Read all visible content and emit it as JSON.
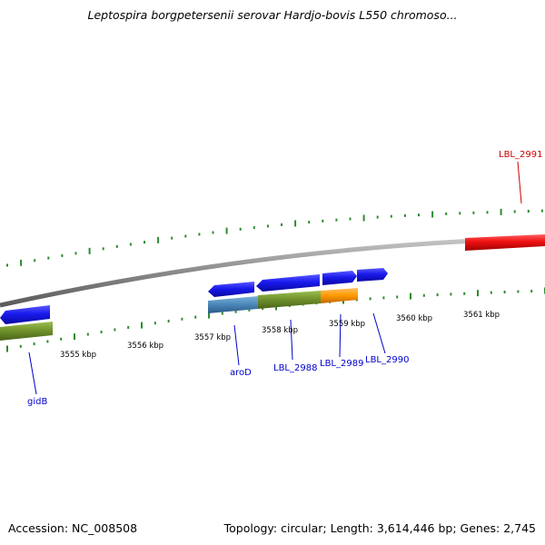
{
  "title": "Leptospira borgpetersenii serovar Hardjo-bovis L550 chromoso...",
  "footer": {
    "accession": "Accession: NC_008508",
    "summary": "Topology: circular; Length: 3,614,446 bp; Genes: 2,745"
  },
  "colors": {
    "backbone": "#8a8a8a",
    "tick": "#2e8b2e",
    "forward_cds": "#1a1aee",
    "reverse_rna": "#ee1111",
    "olive": "#6e8f2a",
    "steel": "#4a86b8",
    "orange": "#ff9900",
    "label_blue": "#0000cc",
    "label_red": "#cc0000"
  },
  "kbp_labels": [
    {
      "kbp": 3555,
      "text": "3555 kbp"
    },
    {
      "kbp": 3556,
      "text": "3556 kbp"
    },
    {
      "kbp": 3557,
      "text": "3557 kbp"
    },
    {
      "kbp": 3558,
      "text": "3558 kbp"
    },
    {
      "kbp": 3559,
      "text": "3559 kbp"
    },
    {
      "kbp": 3560,
      "text": "3560 kbp"
    },
    {
      "kbp": 3561,
      "text": "3561 kbp"
    }
  ],
  "gene_labels": [
    {
      "name": "gidB",
      "color": "label_blue"
    },
    {
      "name": "aroD",
      "color": "label_blue"
    },
    {
      "name": "LBL_2988",
      "color": "label_blue"
    },
    {
      "name": "LBL_2989",
      "color": "label_blue"
    },
    {
      "name": "LBL_2990",
      "color": "label_blue"
    },
    {
      "name": "LBL_2991",
      "color": "label_red"
    }
  ]
}
